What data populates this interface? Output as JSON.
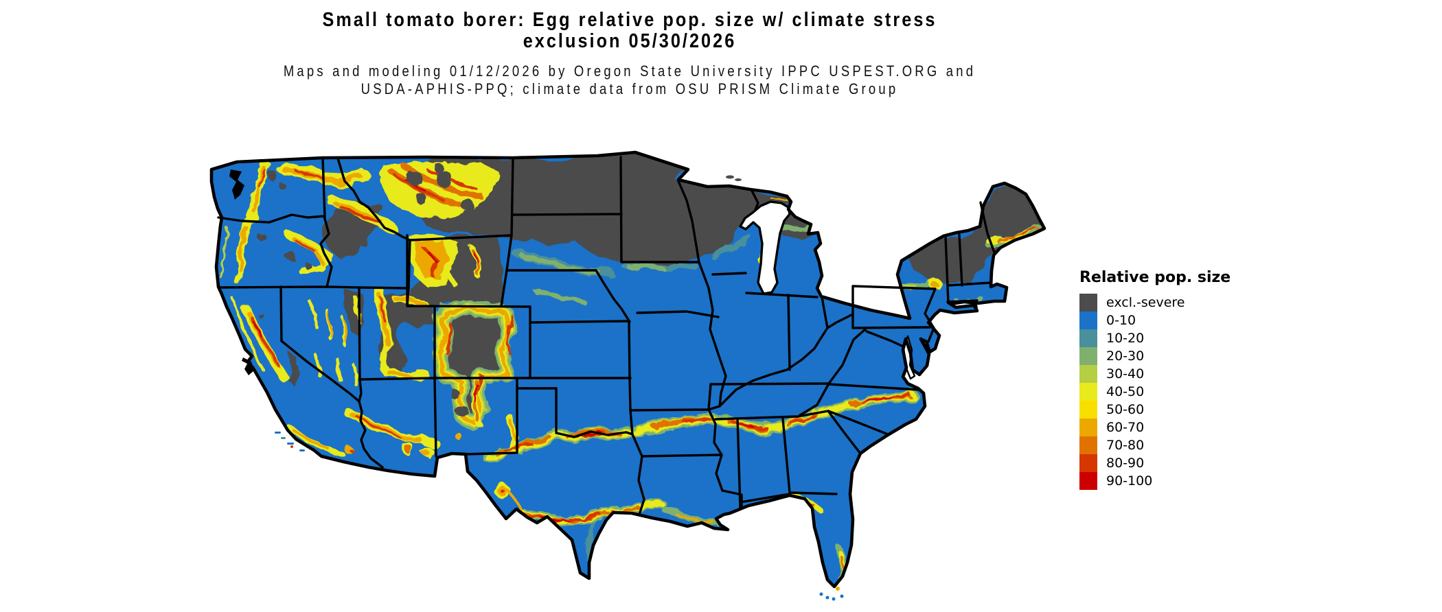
{
  "title": {
    "line1": "Small tomato borer: Egg relative pop. size w/ climate stress",
    "line2": "exclusion 05/30/2026"
  },
  "subtitle": {
    "line1": "Maps and modeling 01/12/2026 by Oregon State University IPPC USPEST.ORG and",
    "line2": "USDA-APHIS-PPQ; climate data from OSU PRISM Climate Group"
  },
  "legend": {
    "title": "Relative pop. size",
    "items": [
      {
        "key": "excl",
        "label": "excl.-severe",
        "color": "#4C4C4C"
      },
      {
        "key": "b0",
        "label": "0-10",
        "color": "#1B72C8"
      },
      {
        "key": "b10",
        "label": "10-20",
        "color": "#4A8F9C"
      },
      {
        "key": "b20",
        "label": "20-30",
        "color": "#7FB06E"
      },
      {
        "key": "b30",
        "label": "30-40",
        "color": "#B5CE44"
      },
      {
        "key": "b40",
        "label": "40-50",
        "color": "#E8EA1C"
      },
      {
        "key": "b50",
        "label": "50-60",
        "color": "#F8DF00"
      },
      {
        "key": "b60",
        "label": "60-70",
        "color": "#ECA800"
      },
      {
        "key": "b70",
        "label": "70-80",
        "color": "#E07300"
      },
      {
        "key": "b80",
        "label": "80-90",
        "color": "#D63700"
      },
      {
        "key": "b90",
        "label": "90-100",
        "color": "#CC0000"
      }
    ]
  },
  "map": {
    "description": "Contiguous United States raster map of egg relative population size with climate stress exclusion; state borders in black",
    "border_color": "#000000",
    "background": "#FFFFFF"
  }
}
